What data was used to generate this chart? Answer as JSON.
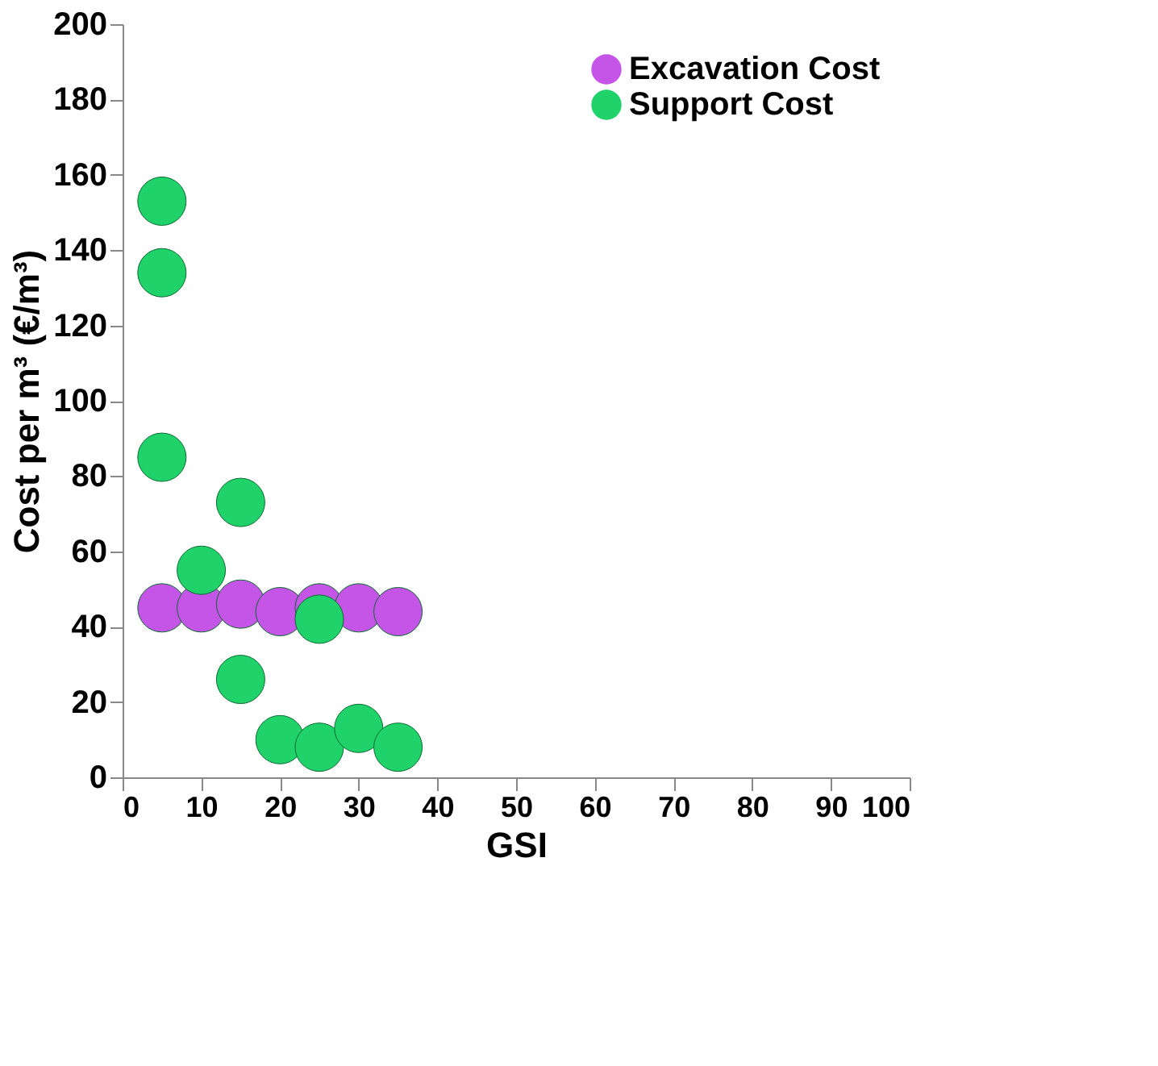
{
  "chart_data": {
    "type": "scatter",
    "xlabel": "GSI",
    "ylabel": "Cost per m³ (€/m³)",
    "xlim": [
      0,
      100
    ],
    "xticks": [
      0,
      10,
      20,
      30,
      40,
      50,
      60,
      70,
      80,
      90,
      100
    ],
    "ylim": [
      0,
      200
    ],
    "yticks": [
      0,
      20,
      40,
      60,
      80,
      100,
      120,
      140,
      160,
      180,
      200
    ],
    "grid": false,
    "legend": "top right",
    "marker": "circle",
    "series": [
      {
        "name": "Excavation Cost",
        "color": "#c455e6",
        "x": [
          5,
          10,
          15,
          20,
          25,
          30,
          35
        ],
        "values": [
          45,
          45,
          46,
          44,
          45,
          45,
          44
        ]
      },
      {
        "name": "Support Cost",
        "color": "#1fd36a",
        "x": [
          5,
          5,
          5,
          10,
          15,
          15,
          20,
          25,
          25,
          30,
          35
        ],
        "values": [
          153,
          134,
          85,
          55,
          73,
          26,
          10,
          8,
          42,
          13,
          8
        ]
      }
    ]
  }
}
